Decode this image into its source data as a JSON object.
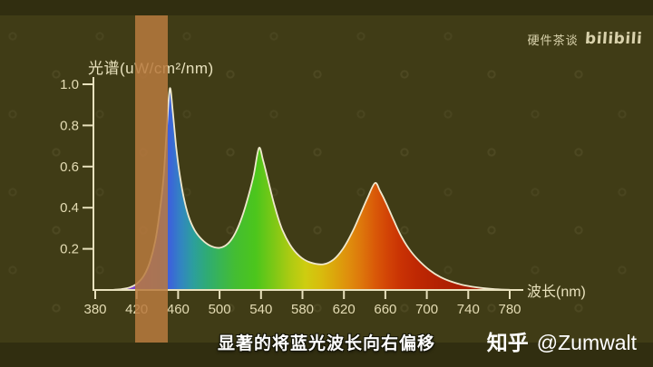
{
  "branding": {
    "channel": "硬件茶谈",
    "platform_logo": "bilibili"
  },
  "subtitle": {
    "text": "显著的将蓝光波长向右偏移"
  },
  "credit": {
    "site": "知乎",
    "handle": "@Zumwalt"
  },
  "colors": {
    "background": "#403c16",
    "letterbox": "#312e10",
    "axis": "#e8e1bd",
    "tick_label": "#e4dcb4",
    "curve_outline": "#f0e8cd",
    "band": "rgba(185,122,62,0.85)",
    "subtitle_text": "#ffffff",
    "credit_text": "#ffffff",
    "watermark_text": "#d9d2ac"
  },
  "chart_data": {
    "type": "area",
    "title": "",
    "ylabel": "光谱(uW/cm²/nm)",
    "xlabel": "波长(nm)",
    "xlim": [
      380,
      780
    ],
    "ylim": [
      0,
      1.0
    ],
    "grid": false,
    "x_ticks": [
      380,
      420,
      460,
      500,
      540,
      580,
      620,
      660,
      700,
      740,
      780
    ],
    "y_ticks": [
      0.2,
      0.4,
      0.6,
      0.8,
      1.0
    ],
    "peaks": [
      {
        "nm": 452,
        "value": 0.98,
        "color_region": "blue"
      },
      {
        "nm": 538,
        "value": 0.69,
        "color_region": "green"
      },
      {
        "nm": 650,
        "value": 0.52,
        "color_region": "orange-red"
      }
    ],
    "valleys": [
      {
        "nm": 500,
        "value": 0.2
      },
      {
        "nm": 600,
        "value": 0.125
      }
    ],
    "highlight_band": {
      "from_nm": 418.5,
      "to_nm": 450
    },
    "points": [
      [
        395,
        0
      ],
      [
        405,
        0.004
      ],
      [
        413,
        0.012
      ],
      [
        420,
        0.03
      ],
      [
        427,
        0.07
      ],
      [
        433,
        0.14
      ],
      [
        438,
        0.24
      ],
      [
        442,
        0.37
      ],
      [
        446,
        0.55
      ],
      [
        449,
        0.78
      ],
      [
        452,
        0.98
      ],
      [
        455,
        0.86
      ],
      [
        458,
        0.7
      ],
      [
        461,
        0.58
      ],
      [
        465,
        0.46
      ],
      [
        470,
        0.36
      ],
      [
        476,
        0.29
      ],
      [
        483,
        0.245
      ],
      [
        491,
        0.215
      ],
      [
        500,
        0.205
      ],
      [
        508,
        0.225
      ],
      [
        515,
        0.275
      ],
      [
        522,
        0.36
      ],
      [
        528,
        0.46
      ],
      [
        533,
        0.56
      ],
      [
        538,
        0.69
      ],
      [
        542,
        0.63
      ],
      [
        547,
        0.53
      ],
      [
        553,
        0.41
      ],
      [
        560,
        0.3
      ],
      [
        568,
        0.22
      ],
      [
        577,
        0.165
      ],
      [
        587,
        0.135
      ],
      [
        600,
        0.125
      ],
      [
        610,
        0.148
      ],
      [
        619,
        0.2
      ],
      [
        628,
        0.28
      ],
      [
        636,
        0.37
      ],
      [
        643,
        0.45
      ],
      [
        650,
        0.52
      ],
      [
        655,
        0.48
      ],
      [
        661,
        0.42
      ],
      [
        668,
        0.34
      ],
      [
        676,
        0.255
      ],
      [
        685,
        0.185
      ],
      [
        694,
        0.135
      ],
      [
        703,
        0.095
      ],
      [
        713,
        0.063
      ],
      [
        724,
        0.04
      ],
      [
        737,
        0.022
      ],
      [
        752,
        0.01
      ],
      [
        766,
        0.004
      ],
      [
        780,
        0.001
      ]
    ],
    "spectrum_gradient": [
      [
        415,
        "#7a44c8"
      ],
      [
        440,
        "#4e52d8"
      ],
      [
        452,
        "#3c63da"
      ],
      [
        463,
        "#3286c0"
      ],
      [
        475,
        "#2c9f9c"
      ],
      [
        488,
        "#2fab74"
      ],
      [
        500,
        "#38b455"
      ],
      [
        515,
        "#44bd32"
      ],
      [
        535,
        "#4cc61c"
      ],
      [
        552,
        "#7cc816"
      ],
      [
        568,
        "#accb12"
      ],
      [
        583,
        "#cecd10"
      ],
      [
        597,
        "#d8bd0d"
      ],
      [
        612,
        "#dca40c"
      ],
      [
        625,
        "#df8d0d"
      ],
      [
        638,
        "#dd740b"
      ],
      [
        650,
        "#d95908"
      ],
      [
        662,
        "#d24406"
      ],
      [
        675,
        "#c93204"
      ],
      [
        690,
        "#bf2803"
      ],
      [
        712,
        "#b22103"
      ],
      [
        745,
        "#a51d02"
      ],
      [
        780,
        "#9c1a02"
      ]
    ]
  }
}
